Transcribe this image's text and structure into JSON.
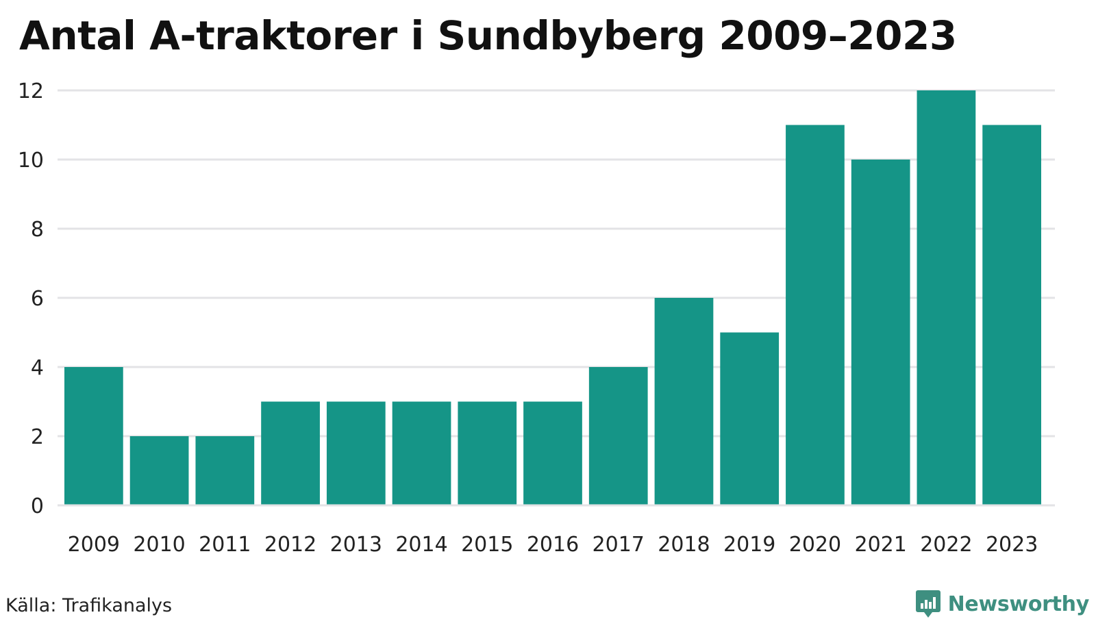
{
  "chart_data": {
    "type": "bar",
    "title": "Antal A-traktorer i Sundbyberg 2009–2023",
    "xlabel": "",
    "ylabel": "",
    "categories": [
      "2009",
      "2010",
      "2011",
      "2012",
      "2013",
      "2014",
      "2015",
      "2016",
      "2017",
      "2018",
      "2019",
      "2020",
      "2021",
      "2022",
      "2023"
    ],
    "values": [
      4,
      2,
      2,
      3,
      3,
      3,
      3,
      3,
      4,
      6,
      5,
      11,
      10,
      12,
      11
    ],
    "ylim": [
      0,
      12
    ],
    "yticks": [
      "0",
      "2",
      "4",
      "6",
      "8",
      "10",
      "12"
    ],
    "grid": true,
    "legend": "none",
    "bar_color": "#159587",
    "grid_color": "#e3e3e6"
  },
  "footer": {
    "source": "Källa: Trafikanalys",
    "brand": "Newsworthy",
    "brand_icon": "newsworthy-logo-icon",
    "brand_color": "#3e8f80"
  }
}
